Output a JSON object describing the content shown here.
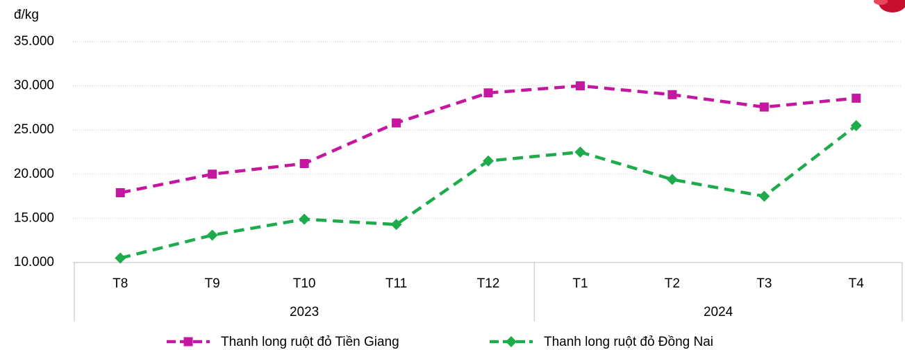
{
  "chart_data": {
    "type": "line",
    "y_unit": "đ/kg",
    "categories": [
      "T8",
      "T9",
      "T10",
      "T11",
      "T12",
      "T1",
      "T2",
      "T3",
      "T4"
    ],
    "groups": [
      {
        "label": "2023",
        "span": 5
      },
      {
        "label": "2024",
        "span": 4
      }
    ],
    "series": [
      {
        "name": "Thanh long ruột đỏ Tiền Giang",
        "color": "#c4169f",
        "marker": "square",
        "values": [
          17900,
          20000,
          21200,
          25800,
          29200,
          30000,
          29000,
          27600,
          28600
        ]
      },
      {
        "name": "Thanh long ruột đỏ Đồng Nai",
        "color": "#1dab4b",
        "marker": "diamond",
        "values": [
          10500,
          13100,
          14900,
          14300,
          21500,
          22500,
          19400,
          17500,
          25500
        ]
      }
    ],
    "ylim": [
      10000,
      35000
    ],
    "yticks": [
      {
        "value": 10000,
        "label": "10.000"
      },
      {
        "value": 15000,
        "label": "15.000"
      },
      {
        "value": 20000,
        "label": "20.000"
      },
      {
        "value": 25000,
        "label": "25.000"
      },
      {
        "value": 30000,
        "label": "30.000"
      },
      {
        "value": 35000,
        "label": "35.000"
      }
    ],
    "grid": true
  }
}
